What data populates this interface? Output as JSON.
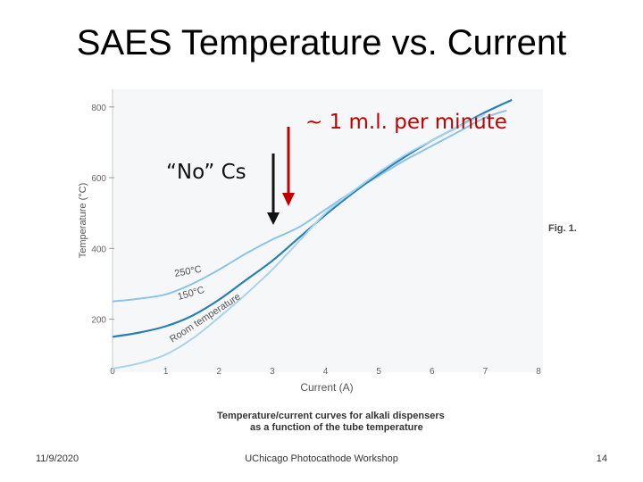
{
  "slide": {
    "title": "SAES Temperature vs. Current",
    "footer_date": "11/9/2020",
    "footer_center": "UChicago Photocathode Workshop",
    "page_number": "14"
  },
  "chart_data": {
    "type": "line",
    "figure_label": "Fig. 1.",
    "xlabel": "Current (A)",
    "ylabel": "Temperature (°C)",
    "xlim": [
      0,
      8
    ],
    "ylim": [
      50,
      850
    ],
    "x_ticks": [
      0,
      1,
      2,
      3,
      4,
      5,
      6,
      7,
      8
    ],
    "y_ticks": [
      200,
      400,
      600,
      800
    ],
    "caption_line1": "Temperature/current curves for alkali dispensers",
    "caption_line2": "as a function of the tube temperature",
    "series": [
      {
        "name": "250°C",
        "color": "#8cc4e8",
        "points": [
          [
            0,
            250
          ],
          [
            0.5,
            258
          ],
          [
            1,
            270
          ],
          [
            1.5,
            300
          ],
          [
            2,
            340
          ],
          [
            2.5,
            385
          ],
          [
            3,
            425
          ],
          [
            3.5,
            460
          ],
          [
            4,
            510
          ],
          [
            4.5,
            560
          ],
          [
            5,
            605
          ],
          [
            5.5,
            650
          ],
          [
            6,
            690
          ],
          [
            6.5,
            730
          ],
          [
            7,
            770
          ],
          [
            7.4,
            790
          ]
        ]
      },
      {
        "name": "150°C",
        "color": "#2a7fb2",
        "points": [
          [
            0,
            150
          ],
          [
            0.5,
            162
          ],
          [
            1,
            180
          ],
          [
            1.5,
            210
          ],
          [
            2,
            255
          ],
          [
            2.5,
            310
          ],
          [
            3,
            365
          ],
          [
            3.5,
            430
          ],
          [
            4,
            495
          ],
          [
            4.5,
            555
          ],
          [
            5,
            610
          ],
          [
            5.5,
            660
          ],
          [
            6,
            705
          ],
          [
            6.5,
            745
          ],
          [
            7,
            785
          ],
          [
            7.5,
            820
          ]
        ]
      },
      {
        "name": "Room temperature",
        "color": "#a8d4ee",
        "points": [
          [
            0,
            60
          ],
          [
            0.5,
            75
          ],
          [
            1,
            100
          ],
          [
            1.5,
            145
          ],
          [
            2,
            205
          ],
          [
            2.5,
            270
          ],
          [
            3,
            340
          ],
          [
            3.5,
            420
          ],
          [
            4,
            500
          ],
          [
            4.5,
            560
          ],
          [
            5,
            615
          ],
          [
            5.5,
            665
          ],
          [
            6,
            705
          ],
          [
            6.5,
            745
          ],
          [
            7,
            780
          ]
        ]
      }
    ],
    "annotations": [
      {
        "text": "“No” Cs",
        "x": 3.0,
        "color": "#111111"
      },
      {
        "text": "~ 1 m.l. per minute",
        "x": 3.3,
        "color": "#c00000"
      }
    ]
  }
}
